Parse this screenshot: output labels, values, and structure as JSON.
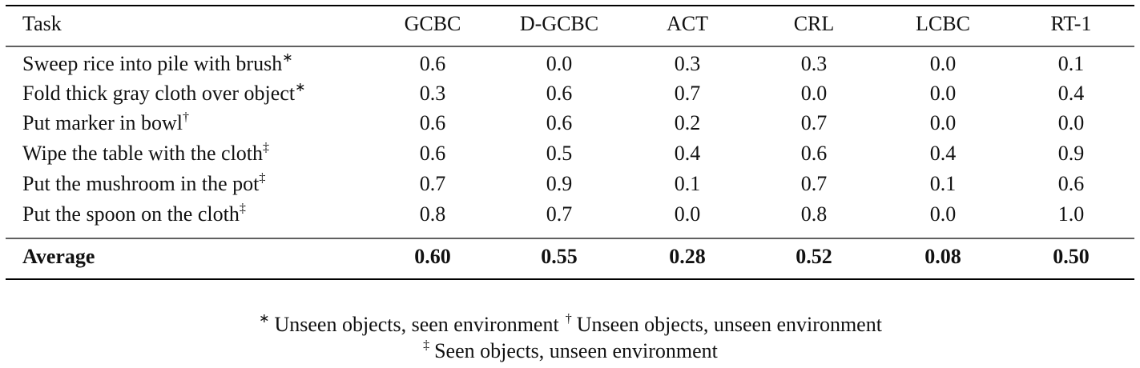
{
  "table": {
    "header": [
      "Task",
      "GCBC",
      "D-GCBC",
      "ACT",
      "CRL",
      "LCBC",
      "RT-1"
    ],
    "rows": [
      {
        "task": "Sweep rice into pile with brush",
        "mark": "∗",
        "values": [
          "0.6",
          "0.0",
          "0.3",
          "0.3",
          "0.0",
          "0.1"
        ]
      },
      {
        "task": "Fold thick gray cloth over object",
        "mark": "∗",
        "values": [
          "0.3",
          "0.6",
          "0.7",
          "0.0",
          "0.0",
          "0.4"
        ]
      },
      {
        "task": "Put marker in bowl",
        "mark": "†",
        "values": [
          "0.6",
          "0.6",
          "0.2",
          "0.7",
          "0.0",
          "0.0"
        ]
      },
      {
        "task": "Wipe the table with the cloth",
        "mark": "‡",
        "values": [
          "0.6",
          "0.5",
          "0.4",
          "0.6",
          "0.4",
          "0.9"
        ]
      },
      {
        "task": "Put the mushroom in the pot",
        "mark": "‡",
        "values": [
          "0.7",
          "0.9",
          "0.1",
          "0.7",
          "0.1",
          "0.6"
        ]
      },
      {
        "task": "Put the spoon on the cloth",
        "mark": "‡",
        "values": [
          "0.8",
          "0.7",
          "0.0",
          "0.8",
          "0.0",
          "1.0"
        ]
      }
    ],
    "average": {
      "label": "Average",
      "values": [
        "0.60",
        "0.55",
        "0.28",
        "0.52",
        "0.08",
        "0.50"
      ]
    }
  },
  "footnotes": [
    {
      "mark": "∗",
      "text": "Unseen objects, seen environment"
    },
    {
      "mark": "†",
      "text": "Unseen objects, unseen environment"
    },
    {
      "mark": "‡",
      "text": "Seen objects, unseen environment"
    }
  ]
}
